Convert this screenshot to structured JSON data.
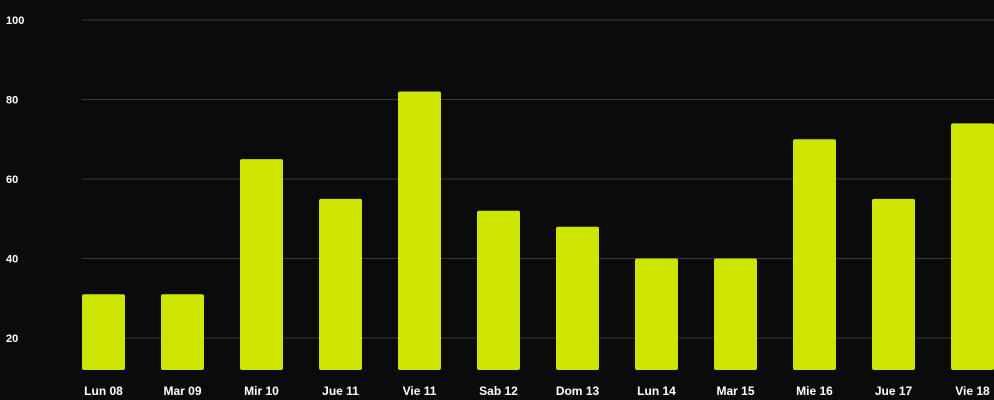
{
  "chart_data": {
    "type": "bar",
    "categories": [
      "Lun 08",
      "Mar 09",
      "Mir 10",
      "Jue 11",
      "Vie 11",
      "Sab 12",
      "Dom 13",
      "Lun 14",
      "Mar 15",
      "Mie 16",
      "Jue 17",
      "Vie 18"
    ],
    "values": [
      31,
      31,
      65,
      55,
      82,
      52,
      48,
      40,
      40,
      70,
      55,
      74
    ],
    "title": "",
    "xlabel": "",
    "ylabel": "",
    "ylim": [
      20,
      100
    ],
    "yticks": [
      20,
      40,
      60,
      80,
      100
    ],
    "grid": true,
    "colors": {
      "bar": "#cde500",
      "background": "#0b0b0b",
      "grid": "#3a3a3a",
      "text": "#ffffff"
    }
  }
}
